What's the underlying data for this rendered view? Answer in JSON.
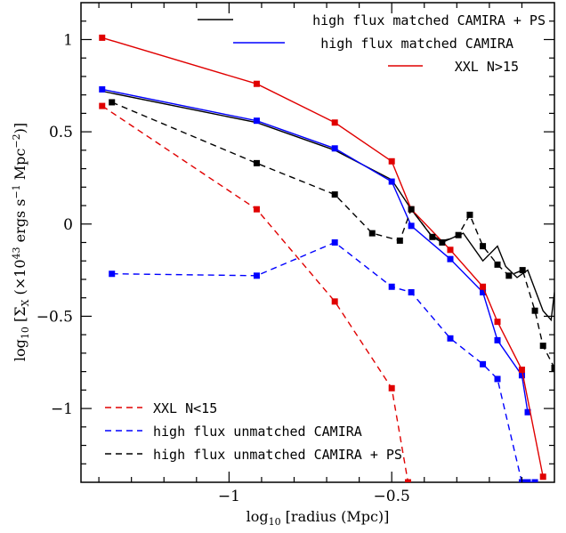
{
  "chart_data": {
    "type": "line",
    "xlabel": "log10 [radius (Mpc)]",
    "ylabel": "log10 [ΣX (×10^43 ergs s^-1 Mpc^-2)]",
    "xlim": [
      -1.455,
      -0.0
    ],
    "ylim": [
      -1.4,
      1.2
    ],
    "x_ticks": [
      -1,
      -0.5
    ],
    "x_tick_labels": [
      "−1",
      "−0.5"
    ],
    "y_ticks": [
      -1,
      -0.5,
      0,
      0.5,
      1
    ],
    "y_tick_labels": [
      "−1",
      "−0.5",
      "0",
      "0.5",
      "1"
    ],
    "grid": false,
    "legend_top": [
      {
        "name": "high flux matched CAMIRA + PS",
        "color": "#000000",
        "dash": "solid"
      },
      {
        "name": "high flux matched CAMIRA",
        "color": "#0000ff",
        "dash": "solid"
      },
      {
        "name": "XXL N>15",
        "color": "#e00000",
        "dash": "solid"
      }
    ],
    "legend_bottom": [
      {
        "name": "XXL N<15",
        "color": "#e00000",
        "dash": "dashed"
      },
      {
        "name": "high flux unmatched CAMIRA",
        "color": "#0000ff",
        "dash": "dashed"
      },
      {
        "name": "high flux unmatched CAMIRA + PS",
        "color": "#000000",
        "dash": "dashed"
      }
    ],
    "series": [
      {
        "name": "high flux matched CAMIRA + PS",
        "color": "#000000",
        "dash": "solid",
        "markers": false,
        "x": [
          -1.39,
          -0.915,
          -0.675,
          -0.5,
          -0.44,
          -0.38,
          -0.345,
          -0.32,
          -0.28,
          -0.22,
          -0.175,
          -0.15,
          -0.115,
          -0.082,
          -0.035,
          -0.01,
          0.0
        ],
        "y": [
          0.72,
          0.55,
          0.4,
          0.24,
          0.08,
          -0.06,
          -0.09,
          -0.08,
          -0.05,
          -0.2,
          -0.12,
          -0.23,
          -0.29,
          -0.25,
          -0.47,
          -0.52,
          -0.37
        ]
      },
      {
        "name": "high flux matched CAMIRA",
        "color": "#0000ff",
        "dash": "solid",
        "markers": true,
        "x": [
          -1.39,
          -0.915,
          -0.675,
          -0.5,
          -0.44,
          -0.32,
          -0.22,
          -0.175,
          -0.1,
          -0.082
        ],
        "y": [
          0.73,
          0.56,
          0.41,
          0.23,
          -0.01,
          -0.19,
          -0.37,
          -0.63,
          -0.82,
          -1.02
        ]
      },
      {
        "name": "XXL N>15",
        "color": "#e00000",
        "dash": "solid",
        "markers": true,
        "x": [
          -1.39,
          -0.915,
          -0.675,
          -0.5,
          -0.44,
          -0.32,
          -0.22,
          -0.175,
          -0.1,
          -0.035
        ],
        "y": [
          1.01,
          0.76,
          0.55,
          0.34,
          0.08,
          -0.14,
          -0.34,
          -0.53,
          -0.79,
          -1.37
        ]
      },
      {
        "name": "XXL N<15",
        "color": "#e00000",
        "dash": "dashed",
        "markers": true,
        "x": [
          -1.39,
          -0.915,
          -0.675,
          -0.5,
          -0.45
        ],
        "y": [
          0.64,
          0.08,
          -0.42,
          -0.89,
          -1.4
        ]
      },
      {
        "name": "high flux unmatched CAMIRA",
        "color": "#0000ff",
        "dash": "dashed",
        "markers": true,
        "x": [
          -1.36,
          -0.915,
          -0.675,
          -0.5,
          -0.44,
          -0.32,
          -0.22,
          -0.175,
          -0.1,
          -0.082,
          -0.06
        ],
        "y": [
          -0.27,
          -0.28,
          -0.1,
          -0.34,
          -0.37,
          -0.62,
          -0.76,
          -0.84,
          -1.4,
          -1.4,
          -1.4
        ]
      },
      {
        "name": "high flux unmatched CAMIRA + PS",
        "color": "#000000",
        "dash": "dashed",
        "markers": true,
        "x": [
          -1.36,
          -0.915,
          -0.675,
          -0.56,
          -0.475,
          -0.44,
          -0.375,
          -0.345,
          -0.295,
          -0.26,
          -0.22,
          -0.175,
          -0.14,
          -0.098,
          -0.06,
          -0.035,
          0.0
        ],
        "y": [
          0.66,
          0.33,
          0.16,
          -0.05,
          -0.09,
          0.08,
          -0.07,
          -0.1,
          -0.06,
          0.05,
          -0.12,
          -0.22,
          -0.28,
          -0.25,
          -0.47,
          -0.66,
          -0.78
        ]
      }
    ]
  }
}
